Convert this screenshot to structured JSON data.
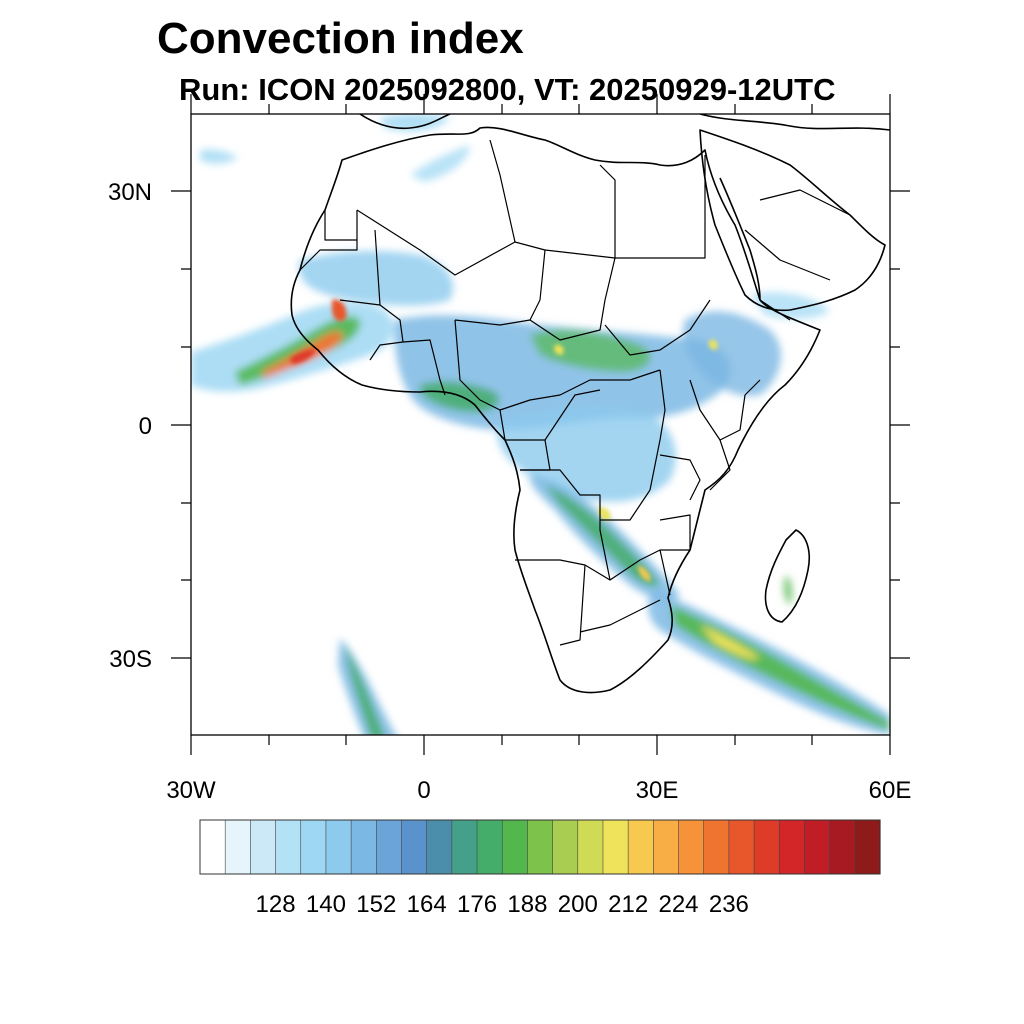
{
  "title": "Convection index",
  "subtitle": "Run: ICON 2025092800,  VT: 20250929-12UTC",
  "map": {
    "region": "Africa",
    "lon_range": [
      -30,
      60
    ],
    "lat_range": [
      -40,
      40
    ],
    "lat_labels": [
      "30N",
      "0",
      "30S"
    ],
    "lon_labels": [
      "30W",
      "0",
      "30E",
      "60E"
    ]
  },
  "colorbar": {
    "tick_labels": [
      "128",
      "140",
      "152",
      "164",
      "176",
      "188",
      "200",
      "212",
      "224",
      "236"
    ],
    "colors": [
      "#ffffff",
      "#e6f4fb",
      "#cbe9f7",
      "#b3e1f5",
      "#9dd7f3",
      "#8ccbee",
      "#7cb8e4",
      "#6aa4d8",
      "#5a93cc",
      "#4b8eab",
      "#45a08a",
      "#45ad6a",
      "#52b84e",
      "#7cc24b",
      "#a8cd50",
      "#cfdb55",
      "#eee35a",
      "#f7c94e",
      "#f8ad45",
      "#f69238",
      "#ef7430",
      "#e8562b",
      "#de3b29",
      "#d32629",
      "#c01d27",
      "#a81a21",
      "#8f1a1a"
    ]
  }
}
